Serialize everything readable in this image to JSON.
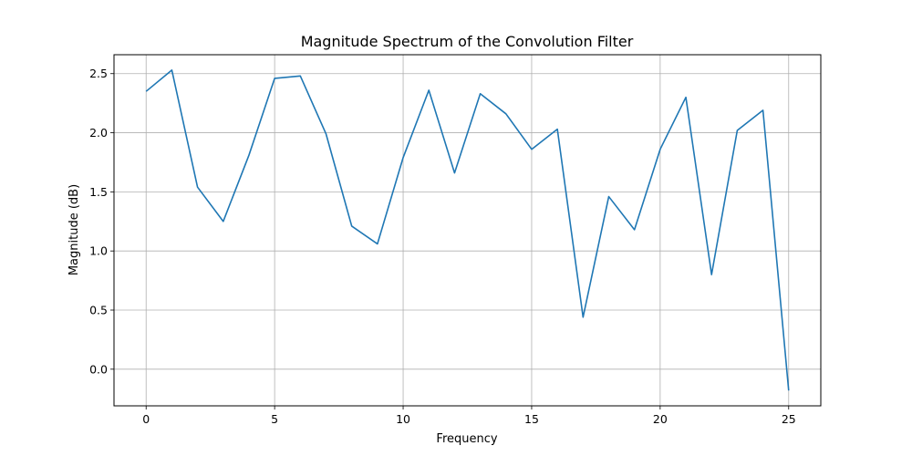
{
  "chart_data": {
    "type": "line",
    "title": "Magnitude Spectrum of the Convolution Filter",
    "xlabel": "Frequency",
    "ylabel": "Magnitude (dB)",
    "xlim": [
      -1.25,
      26.25
    ],
    "ylim": [
      -0.31,
      2.66
    ],
    "xticks": [
      0,
      5,
      10,
      15,
      20,
      25
    ],
    "yticks": [
      0.0,
      0.5,
      1.0,
      1.5,
      2.0,
      2.5
    ],
    "xtick_labels": [
      "0",
      "5",
      "10",
      "15",
      "20",
      "25"
    ],
    "ytick_labels": [
      "0.0",
      "0.5",
      "1.0",
      "1.5",
      "2.0",
      "2.5"
    ],
    "grid": true,
    "legend": "none",
    "series": [
      {
        "color": "#1f77b4",
        "x": [
          0,
          1,
          2,
          3,
          4,
          5,
          6,
          7,
          8,
          9,
          10,
          11,
          12,
          13,
          14,
          15,
          16,
          17,
          18,
          19,
          20,
          21,
          22,
          23,
          24,
          25
        ],
        "y": [
          2.35,
          2.53,
          1.54,
          1.25,
          1.81,
          2.46,
          2.48,
          1.99,
          1.21,
          1.06,
          1.79,
          2.36,
          1.66,
          2.33,
          2.16,
          1.86,
          2.03,
          0.44,
          1.46,
          1.18,
          1.86,
          2.3,
          0.8,
          2.02,
          2.19,
          -0.18
        ]
      }
    ]
  }
}
